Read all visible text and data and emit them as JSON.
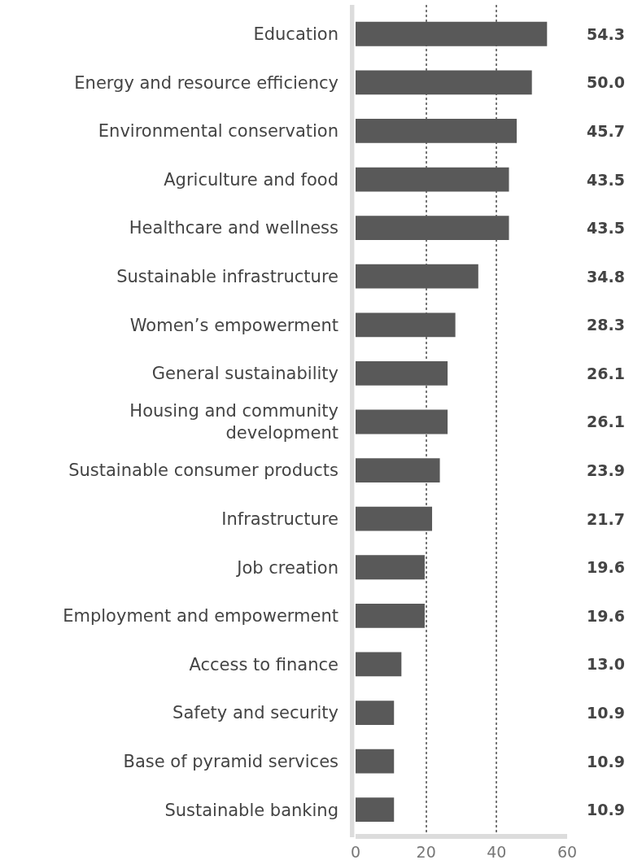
{
  "chart_data": {
    "type": "bar",
    "orientation": "horizontal",
    "categories": [
      "Education",
      "Energy and resource efficiency",
      "Environmental conservation",
      "Agriculture and food",
      "Healthcare and wellness",
      "Sustainable infrastructure",
      "Women’s empowerment",
      "General sustainability",
      "Housing and community development",
      "Sustainable consumer products",
      "Infrastructure",
      "Job creation",
      "Employment and empowerment",
      "Access to finance",
      "Safety and security",
      "Base of pyramid services",
      "Sustainable banking"
    ],
    "values": [
      54.3,
      50.0,
      45.7,
      43.5,
      43.5,
      34.8,
      28.3,
      26.1,
      26.1,
      23.9,
      21.7,
      19.6,
      19.6,
      13.0,
      10.9,
      10.9,
      10.9
    ],
    "color": "#595959",
    "xlim": [
      0,
      60
    ],
    "xticks": [
      0,
      20,
      40,
      60
    ],
    "value_labels": [
      "54.3",
      "50.0",
      "45.7",
      "43.5",
      "43.5",
      "34.8",
      "28.3",
      "26.1",
      "26.1",
      "23.9",
      "21.7",
      "19.6",
      "19.6",
      "13.0",
      "10.9",
      "10.9",
      "10.9"
    ],
    "grid": "x"
  }
}
